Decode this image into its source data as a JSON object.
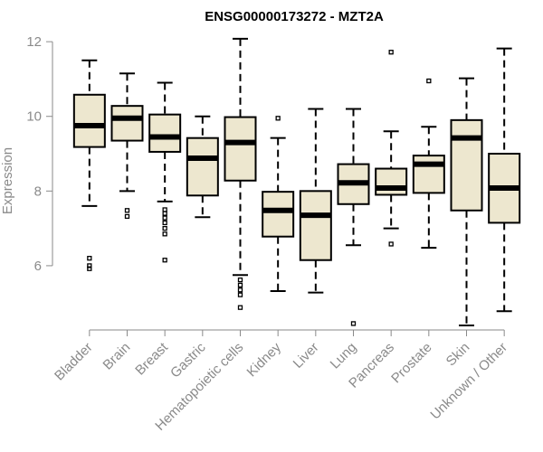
{
  "chart_data": {
    "type": "boxplot",
    "title": "ENSG00000173272 - MZT2A",
    "xlabel": "",
    "ylabel": "Expression",
    "ylim": [
      4.4,
      12.1
    ],
    "yticks": [
      6,
      8,
      10,
      12
    ],
    "box_fill": "#ede7cf",
    "line_color": "#000000",
    "axis_color": "#8a8a8a",
    "categories": [
      "Bladder",
      "Brain",
      "Breast",
      "Gastric",
      "Hematopoietic cells",
      "Kidney",
      "Liver",
      "Lung",
      "Pancreas",
      "Prostate",
      "Skin",
      "Unknown / Other"
    ],
    "boxes": [
      {
        "name": "Bladder",
        "whisker_low": 7.6,
        "q1": 9.18,
        "median": 9.75,
        "q3": 10.58,
        "whisker_high": 11.5,
        "outliers": [
          6.2,
          6.0,
          5.92
        ]
      },
      {
        "name": "Brain",
        "whisker_low": 8.0,
        "q1": 9.35,
        "median": 9.95,
        "q3": 10.28,
        "whisker_high": 11.15,
        "outliers": [
          7.48,
          7.32
        ]
      },
      {
        "name": "Breast",
        "whisker_low": 7.72,
        "q1": 9.05,
        "median": 9.45,
        "q3": 10.05,
        "whisker_high": 10.9,
        "outliers": [
          7.5,
          7.4,
          7.28,
          7.15,
          7.0,
          6.85,
          6.15
        ]
      },
      {
        "name": "Gastric",
        "whisker_low": 7.3,
        "q1": 7.88,
        "median": 8.88,
        "q3": 9.42,
        "whisker_high": 10.0,
        "outliers": []
      },
      {
        "name": "Hematopoietic cells",
        "whisker_low": 5.75,
        "q1": 8.28,
        "median": 9.3,
        "q3": 9.98,
        "whisker_high": 12.08,
        "outliers": [
          5.62,
          5.48,
          5.35,
          5.22,
          4.88
        ]
      },
      {
        "name": "Kidney",
        "whisker_low": 5.32,
        "q1": 6.78,
        "median": 7.48,
        "q3": 7.98,
        "whisker_high": 9.42,
        "outliers": [
          9.95
        ]
      },
      {
        "name": "Liver",
        "whisker_low": 5.28,
        "q1": 6.15,
        "median": 7.35,
        "q3": 8.0,
        "whisker_high": 10.2,
        "outliers": []
      },
      {
        "name": "Lung",
        "whisker_low": 6.55,
        "q1": 7.65,
        "median": 8.22,
        "q3": 8.72,
        "whisker_high": 10.2,
        "outliers": [
          4.45
        ]
      },
      {
        "name": "Pancreas",
        "whisker_low": 7.0,
        "q1": 7.9,
        "median": 8.08,
        "q3": 8.6,
        "whisker_high": 9.6,
        "outliers": [
          11.72,
          6.58
        ]
      },
      {
        "name": "Prostate",
        "whisker_low": 6.48,
        "q1": 7.95,
        "median": 8.72,
        "q3": 8.95,
        "whisker_high": 9.72,
        "outliers": [
          10.95
        ]
      },
      {
        "name": "Skin",
        "whisker_low": 4.4,
        "q1": 7.48,
        "median": 9.42,
        "q3": 9.9,
        "whisker_high": 11.02,
        "outliers": []
      },
      {
        "name": "Unknown / Other",
        "whisker_low": 4.78,
        "q1": 7.15,
        "median": 8.08,
        "q3": 9.0,
        "whisker_high": 11.82,
        "outliers": []
      }
    ]
  }
}
